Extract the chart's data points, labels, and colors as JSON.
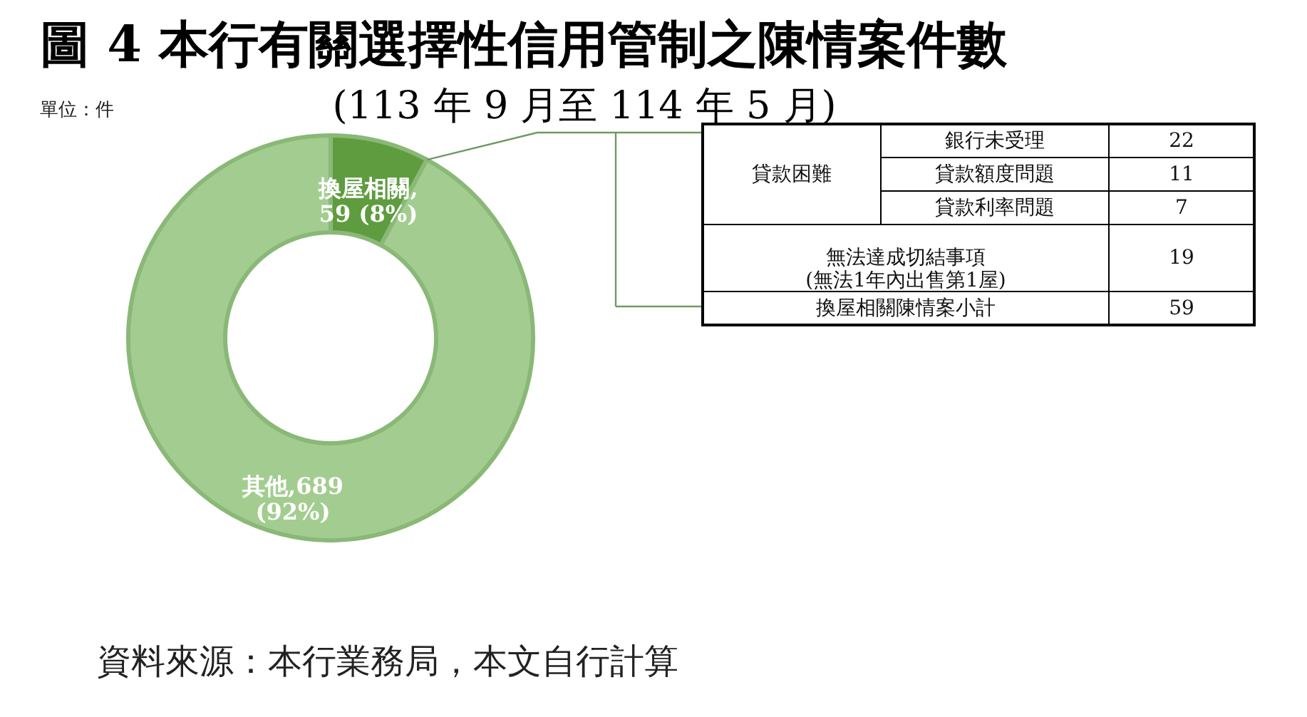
{
  "chart_data": [
    {
      "type": "donut",
      "title": "圖 4 本行有關選擇性信用管制之陳情案件數",
      "subtitle": "(113 年 9 月至 114 年 5 月)",
      "categories": [
        "換屋相關",
        "其他"
      ],
      "values": [
        59,
        689
      ],
      "colors": [
        "#5e9c3f",
        "#a3cd90"
      ],
      "value_labels": [
        ",\n59 (8%)",
        ",689\n(92%)"
      ],
      "annotations": [
        "單位：件",
        "資料來源：本行業務局，本文自行計算"
      ]
    },
    {
      "type": "other",
      "categories": [
        "銀行未受理",
        "貸款額度問題",
        "貸款利率問題",
        "無法達成切結事項\n(無法1年內出售第1屋)",
        "換屋相關陳情案小計"
      ],
      "values": [
        22,
        11,
        7,
        19,
        59
      ],
      "data_labels": true,
      "annotations": [
        "貸款困難"
      ]
    }
  ]
}
